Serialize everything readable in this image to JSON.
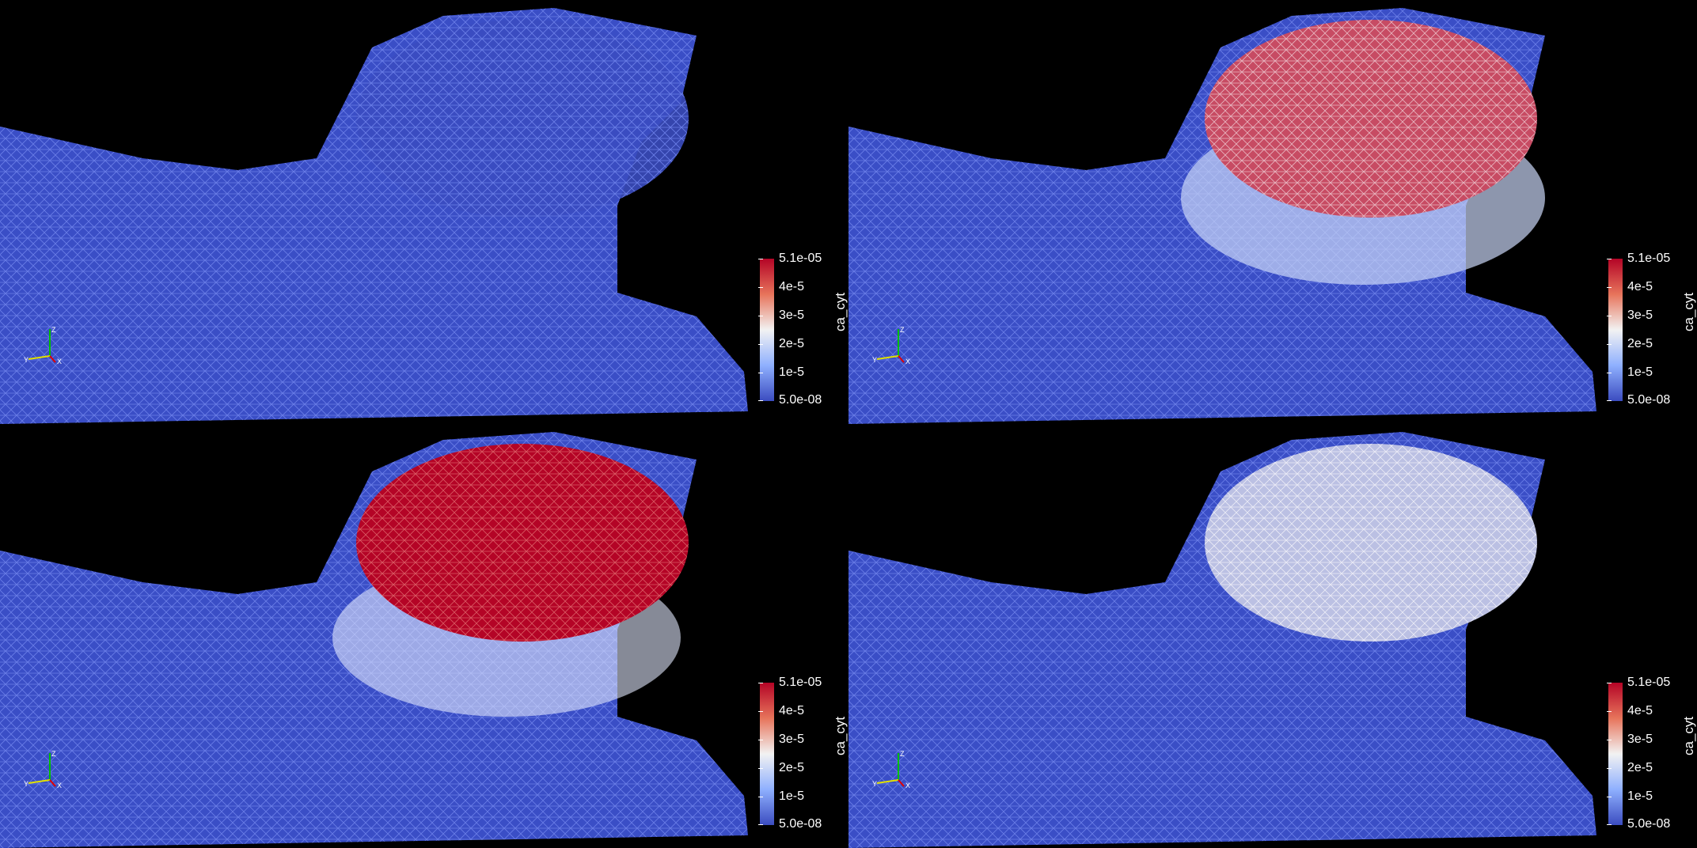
{
  "colorbar": {
    "title": "ca_cyt",
    "ticks": [
      "5.1e-05",
      "4e-5",
      "3e-5",
      "2e-5",
      "1e-5",
      "5.0e-08"
    ]
  },
  "colors": {
    "low": "#3b4cc0",
    "mid": "#f2f2f2",
    "high": "#b40426",
    "background": "#000000"
  },
  "panels": [
    {
      "id": "top-left",
      "bulb_level": 0.0
    },
    {
      "id": "top-right",
      "bulb_level": 0.85
    },
    {
      "id": "bottom-left",
      "bulb_level": 1.0
    },
    {
      "id": "bottom-right",
      "bulb_level": 0.35
    }
  ],
  "axes_glyph": {
    "labels": [
      "Z",
      "Y",
      "X"
    ]
  }
}
